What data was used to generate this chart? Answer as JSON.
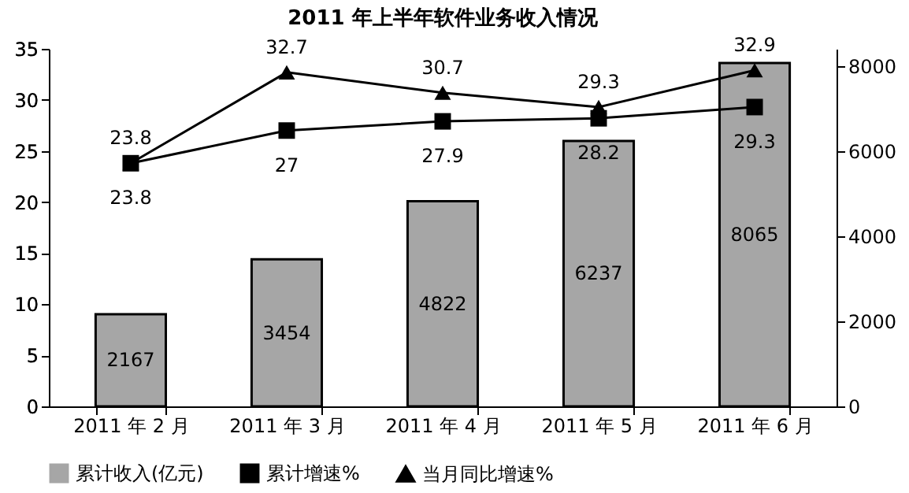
{
  "chart_data": {
    "type": "bar",
    "title": "2011 年上半年软件业务收入情况",
    "categories": [
      "2011 年 2 月",
      "2011 年 3 月",
      "2011 年 4 月",
      "2011 年 5 月",
      "2011 年 6 月"
    ],
    "series": [
      {
        "name": "累计收入(亿元)",
        "axis": "y2",
        "color": "#a6a6a6",
        "values": [
          2167,
          3454,
          4822,
          6237,
          8065
        ]
      },
      {
        "name": "累计增速%",
        "type": "line",
        "marker": "square",
        "color": "#000000",
        "values": [
          23.8,
          27,
          27.9,
          28.2,
          29.3
        ]
      },
      {
        "name": "当月同比增速%",
        "type": "line",
        "marker": "triangle",
        "color": "#000000",
        "values": [
          23.8,
          32.7,
          30.7,
          29.3,
          32.9
        ]
      }
    ],
    "ylim": [
      0,
      35
    ],
    "yticks": [
      0,
      5,
      10,
      15,
      20,
      25,
      30,
      35
    ],
    "y2lim": [
      0,
      8400
    ],
    "y2ticks": [
      0,
      2000,
      4000,
      6000,
      8000
    ],
    "data_labels": true,
    "legend": "bottom",
    "grid": false
  }
}
